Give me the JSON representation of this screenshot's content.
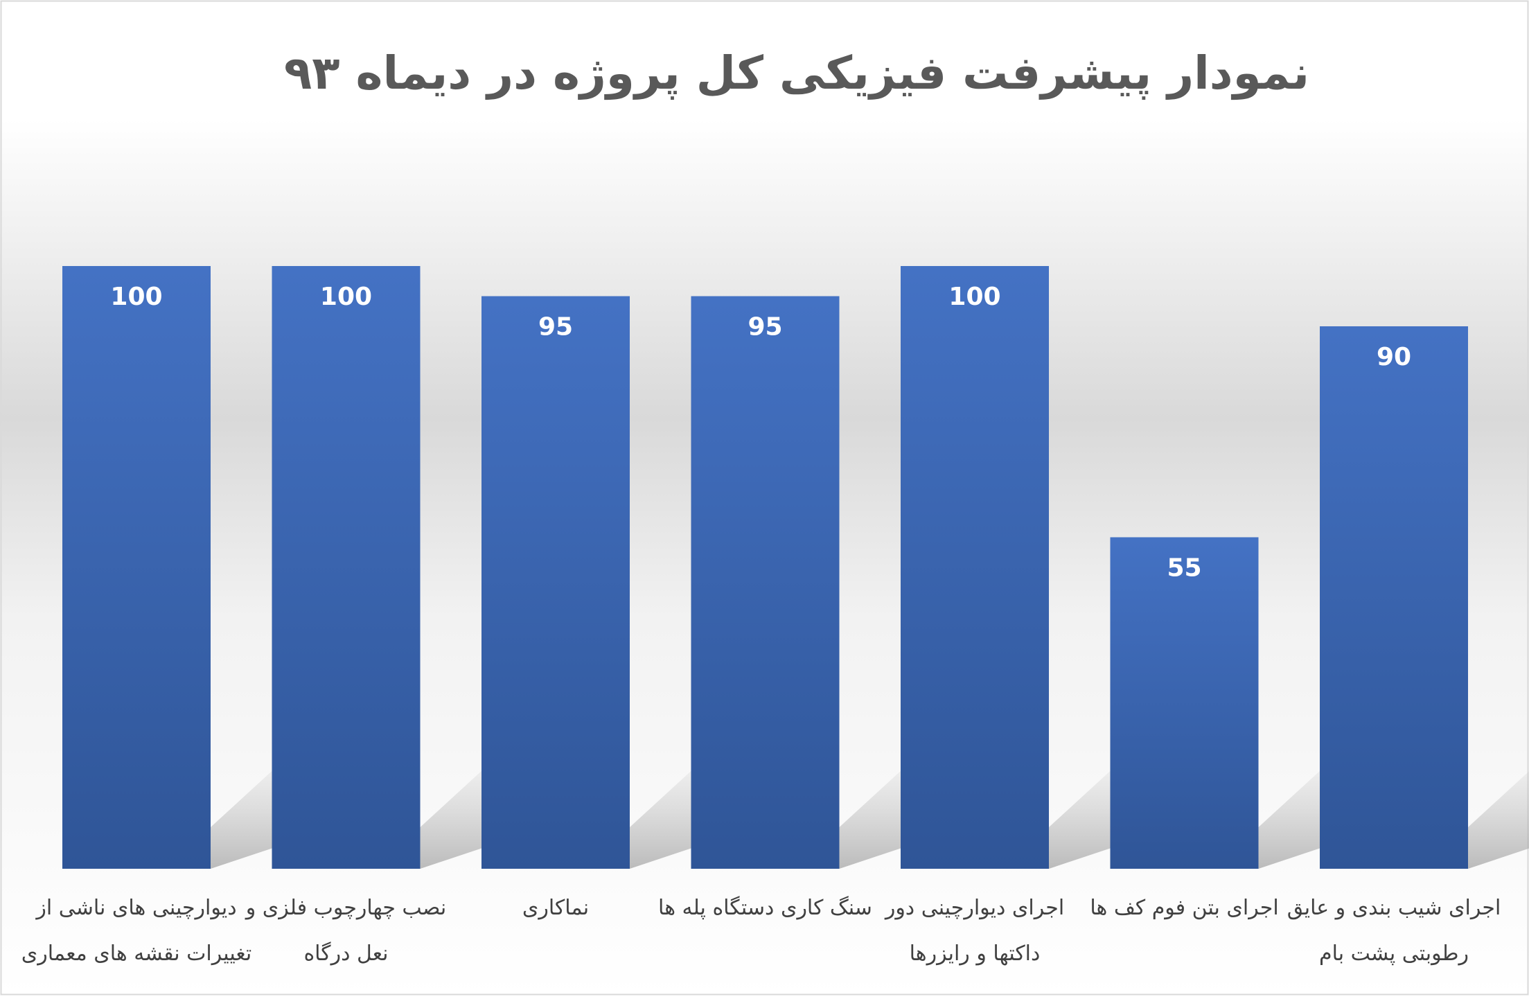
{
  "chart_data": {
    "type": "bar",
    "title": "نمودار پیشرفت فیزیکی کل پروژه در دیماه ۹۳",
    "xlabel": "",
    "ylabel": "",
    "ylim": [
      0,
      100
    ],
    "grid": false,
    "legend": "none",
    "categories": [
      [
        "دیوارچینی های ناشی از",
        "تغییرات نقشه های معماری"
      ],
      [
        "نصب چهارچوب فلزی و",
        "نعل درگاه"
      ],
      [
        "نماکاری"
      ],
      [
        "سنگ کاری دستگاه پله ها"
      ],
      [
        "اجرای دیوارچینی دور",
        "داکتها و رایزرها"
      ],
      [
        "اجرای بتن فوم کف ها"
      ],
      [
        "اجرای شیب بندی و عایق",
        "رطوبتی پشت بام"
      ]
    ],
    "values": [
      100,
      100,
      95,
      95,
      100,
      55,
      90
    ],
    "colors": {
      "bar_top": "#4472C4",
      "bar_bottom": "#2F5597",
      "value_label": "#FFFFFF",
      "title": "#595959",
      "category_label": "#404040"
    }
  }
}
